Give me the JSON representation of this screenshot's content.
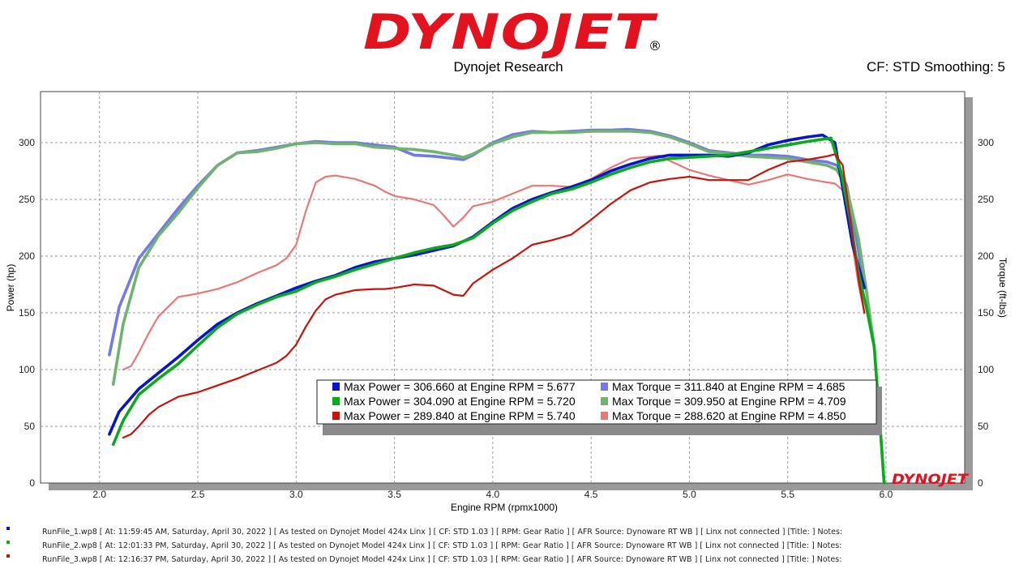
{
  "brand": {
    "logo": "DYNOJET",
    "registered": "®",
    "watermark": "DYNOJET"
  },
  "header": {
    "subtitle": "Dynojet Research",
    "settings": "CF: STD Smoothing: 5"
  },
  "chart_data": {
    "type": "line",
    "xlabel": "Engine RPM (rpmx1000)",
    "ylabel": "Power (hp)",
    "y2label": "Torque (ft-lbs)",
    "xlim": [
      1.7,
      6.4
    ],
    "ylim": [
      0,
      345
    ],
    "y2lim": [
      0,
      345
    ],
    "x_ticks": [
      "2.0",
      "2.5",
      "3.0",
      "3.5",
      "4.0",
      "4.5",
      "5.0",
      "5.5",
      "6.0"
    ],
    "y_ticks": [
      "0",
      "50",
      "100",
      "150",
      "200",
      "250",
      "300"
    ],
    "y2_ticks": [
      "0",
      "50",
      "100",
      "150",
      "200",
      "250",
      "300"
    ],
    "series": [
      {
        "name": "Power Run 1",
        "axis": "left",
        "color": "#0a14c8",
        "x": [
          2.05,
          2.1,
          2.2,
          2.3,
          2.4,
          2.5,
          2.6,
          2.7,
          2.8,
          2.9,
          3.0,
          3.1,
          3.2,
          3.3,
          3.4,
          3.5,
          3.6,
          3.7,
          3.8,
          3.9,
          4.0,
          4.1,
          4.2,
          4.3,
          4.4,
          4.5,
          4.6,
          4.7,
          4.8,
          4.9,
          5.0,
          5.1,
          5.2,
          5.3,
          5.4,
          5.5,
          5.6,
          5.677,
          5.74,
          5.78,
          5.83,
          5.89
        ],
        "y": [
          43,
          63,
          83,
          97,
          111,
          126,
          140,
          150,
          158,
          165,
          172,
          178,
          183,
          190,
          195,
          198,
          201,
          205,
          209,
          217,
          230,
          242,
          250,
          256,
          261,
          267,
          275,
          281,
          286,
          289,
          289,
          289,
          288,
          291,
          298,
          302,
          305,
          306.7,
          300,
          260,
          210,
          172
        ]
      },
      {
        "name": "Power Run 2",
        "axis": "left",
        "color": "#0aaa1e",
        "x": [
          2.07,
          2.12,
          2.2,
          2.3,
          2.4,
          2.5,
          2.6,
          2.7,
          2.8,
          2.9,
          3.0,
          3.1,
          3.2,
          3.3,
          3.4,
          3.5,
          3.6,
          3.7,
          3.8,
          3.9,
          4.0,
          4.1,
          4.2,
          4.3,
          4.4,
          4.5,
          4.6,
          4.7,
          4.8,
          4.9,
          5.0,
          5.1,
          5.2,
          5.3,
          5.4,
          5.5,
          5.6,
          5.72,
          5.77,
          5.82,
          5.86,
          5.9,
          5.94,
          5.97,
          5.99
        ],
        "y": [
          34,
          55,
          78,
          92,
          105,
          121,
          137,
          149,
          157,
          164,
          169,
          177,
          182,
          188,
          193,
          198,
          203,
          207,
          210,
          216,
          229,
          240,
          248,
          255,
          259,
          265,
          272,
          278,
          283,
          286,
          287,
          288,
          289,
          292,
          295,
          298,
          301,
          304.1,
          275,
          230,
          185,
          155,
          120,
          50,
          0
        ]
      },
      {
        "name": "Power Run 3",
        "axis": "left",
        "color": "#c8140a",
        "x": [
          2.12,
          2.16,
          2.2,
          2.25,
          2.3,
          2.4,
          2.5,
          2.6,
          2.7,
          2.8,
          2.9,
          2.95,
          3.0,
          3.05,
          3.1,
          3.15,
          3.2,
          3.3,
          3.4,
          3.45,
          3.5,
          3.6,
          3.7,
          3.75,
          3.8,
          3.85,
          3.9,
          4.0,
          4.1,
          4.2,
          4.3,
          4.4,
          4.5,
          4.6,
          4.7,
          4.8,
          4.9,
          5.0,
          5.1,
          5.2,
          5.3,
          5.4,
          5.5,
          5.6,
          5.7,
          5.74,
          5.78,
          5.82,
          5.86,
          5.89
        ],
        "y": [
          40,
          43,
          50,
          60,
          67,
          76,
          80,
          86,
          92,
          99,
          106,
          112,
          122,
          138,
          152,
          162,
          166,
          170,
          171,
          171,
          172,
          175,
          174,
          170,
          166,
          165,
          176,
          188,
          198,
          210,
          214,
          219,
          232,
          246,
          258,
          265,
          268,
          270,
          267,
          267,
          267,
          276,
          283,
          285,
          288,
          289.8,
          280,
          230,
          180,
          150
        ]
      },
      {
        "name": "Torque Run 1",
        "axis": "right",
        "color": "#7379e6",
        "x": [
          2.05,
          2.1,
          2.2,
          2.3,
          2.4,
          2.5,
          2.6,
          2.7,
          2.8,
          2.9,
          3.0,
          3.1,
          3.2,
          3.3,
          3.4,
          3.5,
          3.6,
          3.7,
          3.8,
          3.85,
          3.9,
          4.0,
          4.1,
          4.2,
          4.3,
          4.4,
          4.5,
          4.6,
          4.685,
          4.8,
          4.9,
          5.0,
          5.1,
          5.2,
          5.3,
          5.4,
          5.5,
          5.6,
          5.7,
          5.75,
          5.8,
          5.85,
          5.89
        ],
        "y": [
          113,
          155,
          198,
          220,
          242,
          262,
          280,
          291,
          293,
          296,
          299,
          301,
          300,
          300,
          298,
          296,
          289,
          288,
          286,
          285,
          289,
          300,
          307,
          310,
          309,
          310,
          311,
          311,
          311.8,
          310,
          306,
          300,
          293,
          291,
          289,
          289,
          288,
          285,
          283,
          280,
          262,
          215,
          172
        ]
      },
      {
        "name": "Torque Run 2",
        "axis": "right",
        "color": "#6fb36f",
        "x": [
          2.07,
          2.12,
          2.2,
          2.3,
          2.4,
          2.5,
          2.6,
          2.7,
          2.8,
          2.9,
          3.0,
          3.1,
          3.2,
          3.3,
          3.4,
          3.5,
          3.6,
          3.7,
          3.8,
          3.85,
          3.9,
          4.0,
          4.1,
          4.2,
          4.3,
          4.4,
          4.5,
          4.6,
          4.709,
          4.8,
          4.9,
          5.0,
          5.1,
          5.2,
          5.3,
          5.4,
          5.5,
          5.6,
          5.7,
          5.75,
          5.8,
          5.86,
          5.9,
          5.94,
          5.97,
          5.99
        ],
        "y": [
          87,
          140,
          190,
          218,
          238,
          260,
          280,
          291,
          292,
          295,
          299,
          300,
          299,
          299,
          296,
          295,
          294,
          292,
          289,
          287,
          290,
          299,
          305,
          309,
          309,
          309,
          310,
          310,
          310,
          309,
          305,
          299,
          292,
          290,
          288,
          287,
          286,
          283,
          280,
          276,
          260,
          215,
          170,
          120,
          50,
          0
        ]
      },
      {
        "name": "Torque Run 3",
        "axis": "right",
        "color": "#e87878",
        "x": [
          2.12,
          2.16,
          2.2,
          2.25,
          2.3,
          2.4,
          2.5,
          2.6,
          2.7,
          2.8,
          2.9,
          2.95,
          3.0,
          3.05,
          3.1,
          3.15,
          3.2,
          3.3,
          3.4,
          3.45,
          3.5,
          3.6,
          3.7,
          3.75,
          3.8,
          3.85,
          3.9,
          4.0,
          4.1,
          4.2,
          4.3,
          4.4,
          4.5,
          4.6,
          4.7,
          4.85,
          4.9,
          5.0,
          5.1,
          5.2,
          5.3,
          5.4,
          5.5,
          5.6,
          5.7,
          5.74,
          5.78,
          5.82,
          5.86,
          5.89
        ],
        "y": [
          100,
          103,
          115,
          132,
          147,
          164,
          167,
          171,
          177,
          185,
          192,
          198,
          210,
          240,
          265,
          270,
          271,
          268,
          262,
          257,
          253,
          250,
          245,
          236,
          226,
          234,
          244,
          248,
          255,
          262,
          262,
          261,
          268,
          278,
          286,
          288.6,
          284,
          276,
          271,
          267,
          263,
          267,
          272,
          268,
          265,
          264,
          258,
          220,
          175,
          150
        ]
      }
    ],
    "legend": [
      {
        "color": "#0a14c8",
        "text": "Max Power = 306.660 at Engine RPM = 5.677"
      },
      {
        "color": "#7379e6",
        "text": "Max Torque = 311.840 at Engine RPM = 4.685"
      },
      {
        "color": "#0aaa1e",
        "text": "Max Power = 304.090 at Engine RPM = 5.720"
      },
      {
        "color": "#6fb36f",
        "text": "Max Torque = 309.950 at Engine RPM = 4.709"
      },
      {
        "color": "#c8140a",
        "text": "Max Power = 289.840 at Engine RPM = 5.740"
      },
      {
        "color": "#e87878",
        "text": "Max Torque = 288.620 at Engine RPM = 4.850"
      }
    ]
  },
  "footer": {
    "runs": [
      {
        "color": "#0a14c8",
        "text": "RunFile_1.wp8 [ At: 11:59:45 AM, Saturday, April 30, 2022 ] [ As tested on Dynojet Model 424x Linx ] [ CF: STD 1.03 ] [ RPM: Gear Ratio ] [ AFR Source: Dynoware RT WB ] [ Linx not connected ] [Title: ]  Notes:"
      },
      {
        "color": "#0aaa1e",
        "text": "RunFile_2.wp8 [ At: 12:01:33 PM, Saturday, April 30, 2022 ] [ As tested on Dynojet Model 424x Linx ] [ CF: STD 1.03 ] [ RPM: Gear Ratio ] [ AFR Source: Dynoware RT WB ] [ Linx not connected ] [Title: ]  Notes:"
      },
      {
        "color": "#c8140a",
        "text": "RunFile_3.wp8 [ At: 12:16:37 PM, Saturday, April 30, 2022 ] [ As tested on Dynojet Model 424x Linx ] [ CF: STD 1.03 ] [ RPM: Gear Ratio ] [ AFR Source: Dynoware RT WB ] [ Linx not connected ] [Title: ]  Notes:"
      }
    ]
  }
}
